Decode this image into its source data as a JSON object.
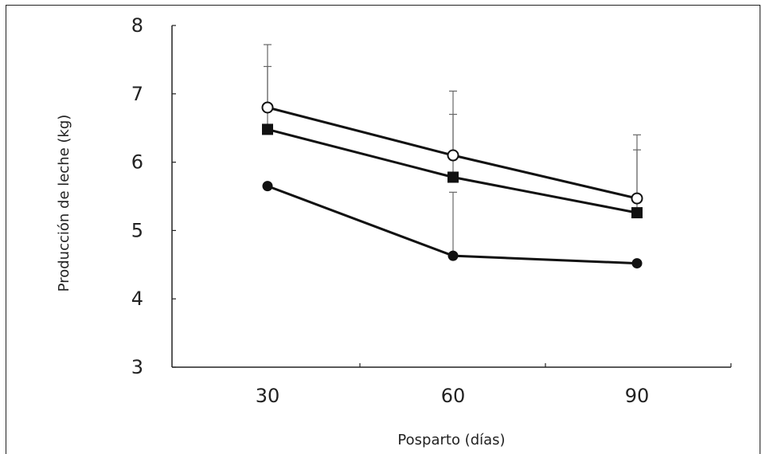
{
  "chart_data": {
    "type": "line",
    "xlabel": "Posparto (días)",
    "ylabel": "Producción de leche (kg)",
    "x": [
      30,
      60,
      90
    ],
    "xticks": [
      "30",
      "60",
      "90"
    ],
    "ylim": [
      3,
      8
    ],
    "yticks": [
      "3",
      "4",
      "5",
      "6",
      "7",
      "8"
    ],
    "grid": false,
    "series": [
      {
        "marker": "open-circle",
        "values": [
          6.8,
          6.1,
          5.47
        ],
        "error_upper": [
          7.72,
          7.04,
          6.4
        ]
      },
      {
        "marker": "filled-square",
        "values": [
          6.48,
          5.78,
          5.26
        ],
        "error_upper": [
          7.4,
          6.7,
          6.18
        ]
      },
      {
        "marker": "filled-circle",
        "values": [
          5.65,
          4.63,
          4.52
        ],
        "error_upper": [
          null,
          5.56,
          null
        ]
      }
    ]
  }
}
